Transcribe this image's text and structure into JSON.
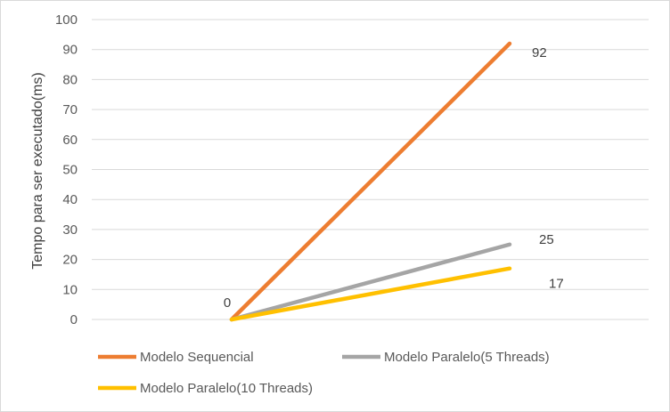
{
  "chart_data": {
    "type": "line",
    "title": "",
    "xlabel": "",
    "ylabel": "Tempo para ser executado(ms)",
    "ylim": [
      0,
      100
    ],
    "yticks": [
      0,
      10,
      20,
      30,
      40,
      50,
      60,
      70,
      80,
      90,
      100
    ],
    "grid": true,
    "legend_position": "bottom",
    "x": [
      0,
      1
    ],
    "series": [
      {
        "name": "Modelo Sequencial",
        "color": "#ED7D31",
        "values": [
          0,
          92
        ],
        "labels": [
          "0",
          "92"
        ]
      },
      {
        "name": "Modelo Paralelo(5 Threads)",
        "color": "#A5A5A5",
        "values": [
          0,
          25
        ],
        "labels": [
          "",
          "25"
        ]
      },
      {
        "name": "Modelo Paralelo(10 Threads)",
        "color": "#FFC000",
        "values": [
          0,
          17
        ],
        "labels": [
          "",
          "17"
        ]
      }
    ]
  }
}
